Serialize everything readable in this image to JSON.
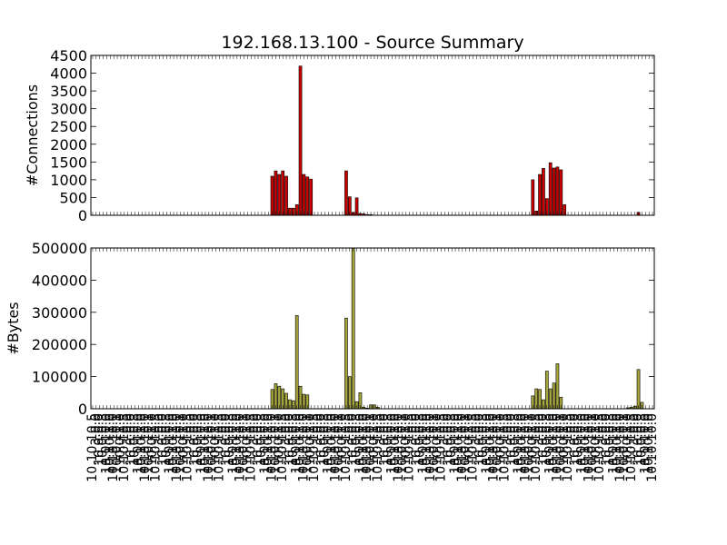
{
  "chart_data": {
    "type": "bar",
    "title": "192.168.13.100 - Source Summary",
    "n_categories": 160,
    "x_tick_labels_legible": false,
    "x_tick_labels_sample": [
      "10.10.10.5",
      "3.0.0",
      "10.0.0.0",
      "10.0.0.8",
      "10.0.10.0",
      "10.10.1.0",
      "10.10.10.0",
      "10.0.10.1",
      "10.0.1.0"
    ],
    "colors": {
      "connections": "#cc0000",
      "bytes": "#a6a63a",
      "edge": "#000000"
    },
    "panels": [
      {
        "id": "connections",
        "ylabel": "#Connections",
        "ylim": [
          0,
          4500
        ],
        "yticks": [
          0,
          500,
          1000,
          1500,
          2000,
          2500,
          3000,
          3500,
          4000,
          4500
        ],
        "ytick_labels": [
          "0",
          "500",
          "1000",
          "1500",
          "2000",
          "2500",
          "3000",
          "3500",
          "4000",
          "4500"
        ],
        "series": [
          {
            "index": [
              51,
              52,
              53,
              54,
              55,
              56,
              57,
              58,
              59,
              60,
              61,
              62,
              63,
              64,
              72,
              73,
              74,
              75,
              76,
              77,
              78,
              79,
              125,
              126,
              127,
              128,
              129,
              130,
              131,
              132,
              133,
              134,
              135,
              136,
              137,
              138,
              139,
              140,
              155
            ],
            "values": [
              1100,
              1250,
              1150,
              1250,
              1100,
              200,
              200,
              300,
              4200,
              1150,
              1080,
              1020,
              0,
              0,
              1250,
              520,
              80,
              490,
              50,
              40,
              20,
              20,
              1000,
              120,
              1150,
              1320,
              470,
              1480,
              1330,
              1360,
              1280,
              300,
              0,
              0,
              0,
              0,
              0,
              0,
              80
            ]
          }
        ]
      },
      {
        "id": "bytes",
        "ylabel": "#Bytes",
        "ylim": [
          0,
          500000
        ],
        "yticks": [
          0,
          100000,
          200000,
          300000,
          400000,
          500000
        ],
        "ytick_labels": [
          "0",
          "100000",
          "200000",
          "300000",
          "400000",
          "500000"
        ],
        "series": [
          {
            "index": [
              51,
              52,
              53,
              54,
              55,
              56,
              57,
              58,
              59,
              60,
              61,
              62,
              63,
              64,
              72,
              73,
              74,
              75,
              76,
              77,
              78,
              79,
              80,
              81,
              125,
              126,
              127,
              128,
              129,
              130,
              131,
              132,
              133,
              134,
              135,
              152,
              153,
              154,
              155,
              156
            ],
            "values": [
              60000,
              78000,
              70000,
              62000,
              48000,
              28000,
              25000,
              290000,
              70000,
              45000,
              43000,
              0,
              0,
              0,
              282000,
              100000,
              500000,
              22000,
              50000,
              5000,
              2000,
              12000,
              12000,
              5000,
              40000,
              62000,
              60000,
              28000,
              117000,
              62000,
              80000,
              140000,
              36000,
              0,
              0,
              3000,
              5000,
              8000,
              122000,
              20000
            ]
          }
        ]
      }
    ]
  }
}
